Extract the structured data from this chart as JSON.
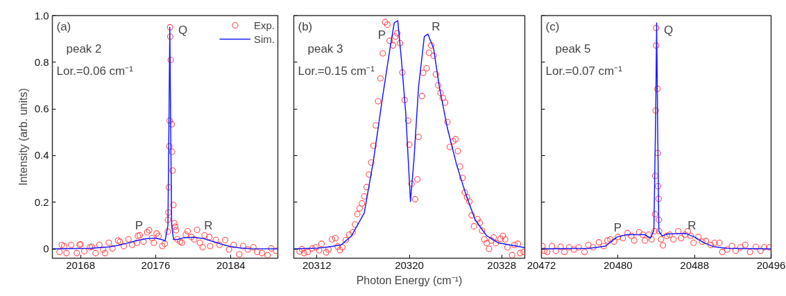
{
  "chart_data": [
    {
      "type": "scatter",
      "ylabel": "Intensity (arb. units)",
      "xlim": [
        20165,
        20189
      ],
      "xticks": [
        20168,
        20176,
        20184
      ],
      "ylim": [
        -0.04,
        1.0
      ],
      "yticks": [
        0,
        0.2,
        0.4,
        0.6,
        0.8,
        {
          "value": 1.0,
          "label": "1.0"
        }
      ],
      "grid": false,
      "legend": "top right",
      "annotations": [
        "(a)",
        "peak 2",
        "Lor.=0.06 cm⁻¹",
        "P",
        "Q",
        "R"
      ],
      "series": [
        {
          "name": "Exp.",
          "marker": "circle",
          "color": "#ff4a4a",
          "x": [
            20165.76,
            20166.0,
            20166.26,
            20166.5,
            20167.0,
            20167.6,
            20167.9,
            20168.0,
            20168.4,
            20169.0,
            20169.2,
            20169.6,
            20170.0,
            20170.4,
            20170.6,
            20171.0,
            20171.4,
            20172.0,
            20172.2,
            20172.6,
            20173.1,
            20173.5,
            20174.0,
            20174.1,
            20174.3,
            20174.7,
            20175.1,
            20175.3,
            20175.6,
            20175.8,
            20176.1,
            20176.3,
            20176.7,
            20176.96,
            20177.28,
            20177.3,
            20177.35,
            20177.4,
            20177.45,
            20177.48,
            20177.53,
            20177.55,
            20177.6,
            20177.7,
            20177.75,
            20177.8,
            20177.88,
            20177.98,
            20178.07,
            20178.17,
            20178.3,
            20178.6,
            20178.8,
            20179.2,
            20179.4,
            20179.8,
            20180.1,
            20180.4,
            20180.7,
            20181.0,
            20181.2,
            20181.7,
            20181.8,
            20182.4,
            20182.8,
            20183.4,
            20183.8,
            20184.3,
            20184.9,
            20185.3,
            20185.8,
            20186.4,
            20186.8,
            20187.3,
            20187.9,
            20188.3,
            20188.8
          ],
          "values": [
            -0.013,
            0.017,
            0.012,
            -0.018,
            0.017,
            -0.018,
            0.017,
            0.02,
            -0.01,
            0.007,
            0.009,
            -0.018,
            0.017,
            -0.003,
            -0.018,
            0.026,
            0.002,
            0.036,
            0.031,
            0.012,
            0.041,
            0.017,
            0.026,
            0.056,
            0.058,
            0.031,
            0.071,
            0.08,
            0.046,
            0.026,
            0.066,
            0.056,
            0.012,
            0.022,
            0.074,
            0.125,
            0.156,
            0.264,
            0.44,
            0.55,
            0.95,
            0.91,
            0.81,
            0.534,
            0.416,
            0.336,
            0.188,
            0.11,
            0.095,
            0.08,
            0.041,
            0.031,
            0.026,
            0.061,
            0.076,
            0.051,
            0.041,
            0.082,
            0.026,
            0.007,
            0.058,
            0.051,
            0.012,
            0.038,
            0.017,
            0.038,
            -0.003,
            0.017,
            -0.023,
            0.012,
            -0.003,
            0.007,
            -0.013,
            -0.018,
            -0.027,
            0.002,
            -0.008
          ]
        },
        {
          "name": "Sim.",
          "type": "line",
          "color": "#1a1aff",
          "x": [
            20165,
            20169,
            20171,
            20172,
            20173,
            20174,
            20175,
            20176,
            20176.6,
            20177.0,
            20177.3,
            20177.4,
            20177.5,
            20177.6,
            20177.7,
            20177.9,
            20178.3,
            20179,
            20180,
            20181,
            20182,
            20183,
            20184,
            20185,
            20186,
            20189
          ],
          "values": [
            0,
            0.002,
            0.008,
            0.015,
            0.025,
            0.036,
            0.044,
            0.046,
            0.04,
            0.035,
            0.1,
            0.5,
            0.95,
            0.5,
            0.1,
            0.04,
            0.04,
            0.048,
            0.05,
            0.045,
            0.033,
            0.02,
            0.01,
            0.004,
            0.001,
            0
          ]
        }
      ]
    },
    {
      "type": "scatter",
      "xlabel": "Photon Energy (cm⁻¹)",
      "xlim": [
        20310,
        20330
      ],
      "xticks": [
        20312,
        20320,
        20328
      ],
      "ylim": [
        -0.04,
        1.0
      ],
      "yticks": [
        0,
        0.2,
        0.4,
        0.6,
        0.8,
        1.0
      ],
      "grid": false,
      "tick_labels": "x",
      "annotations": [
        "(b)",
        "peak 3",
        "Lor.=0.15 cm⁻¹",
        "P",
        "R"
      ],
      "series": [
        {
          "marker": "circle",
          "color": "#ff4a4a",
          "x": [
            20310.5,
            20310.7,
            20310.9,
            20311.2,
            20311.6,
            20311.9,
            20312.2,
            20312.4,
            20312.8,
            20313.0,
            20313.3,
            20313.6,
            20313.8,
            20314.0,
            20314.2,
            20314.5,
            20314.8,
            20315.1,
            20315.3,
            20315.5,
            20315.7,
            20315.9,
            20316.1,
            20316.3,
            20316.5,
            20316.7,
            20316.9,
            20317.1,
            20317.3,
            20317.5,
            20317.7,
            20317.9,
            20318.1,
            20318.3,
            20318.6,
            20318.8,
            20318.96,
            20319.2,
            20319.4,
            20319.6,
            20319.9,
            20320.0,
            20320.2,
            20320.5,
            20320.7,
            20320.8,
            20321.1,
            20321.2,
            20321.5,
            20321.7,
            20321.9,
            20322.1,
            20322.3,
            20322.5,
            20322.7,
            20322.9,
            20323.1,
            20323.3,
            20323.5,
            20323.8,
            20324.0,
            20324.2,
            20324.4,
            20324.6,
            20324.8,
            20325.0,
            20325.2,
            20325.4,
            20325.6,
            20325.9,
            20326.1,
            20326.3,
            20326.5,
            20326.7,
            20326.9,
            20327.1,
            20327.3,
            20327.5,
            20327.9,
            20328.1,
            20328.3,
            20328.5,
            20328.9,
            20329.1,
            20329.4,
            20329.6,
            20329.9
          ],
          "values": [
            -0.011,
            -0.001,
            -0.018,
            -0.013,
            0.002,
            0.007,
            -0.006,
            0.022,
            -0.015,
            -0.003,
            0.041,
            0.046,
            0.01,
            -0.005,
            0.007,
            0.038,
            0.061,
            0.071,
            0.105,
            0.149,
            0.174,
            0.195,
            0.225,
            0.265,
            0.319,
            0.37,
            0.442,
            0.529,
            0.633,
            0.731,
            0.838,
            0.972,
            0.961,
            0.892,
            0.872,
            0.91,
            0.924,
            0.882,
            0.756,
            0.638,
            0.55,
            0.447,
            0.279,
            0.213,
            0.298,
            0.48,
            0.655,
            0.755,
            0.774,
            0.841,
            0.872,
            0.828,
            0.748,
            0.701,
            0.669,
            0.647,
            0.627,
            0.544,
            0.437,
            0.461,
            0.47,
            0.419,
            0.353,
            0.304,
            0.242,
            0.221,
            0.203,
            0.144,
            0.097,
            0.127,
            0.112,
            0.078,
            0.041,
            0.025,
            0.0,
            0.036,
            0.049,
            0.025,
            0.043,
            0.056,
            0.041,
            0.007,
            -0.027,
            0.017,
            0.022,
            -0.018,
            -0.013
          ]
        },
        {
          "type": "line",
          "color": "#1a1aff",
          "x": [
            20310,
            20312,
            20313,
            20314.1,
            20315,
            20316.1,
            20316.9,
            20317.7,
            20318.3,
            20318.7,
            20319.0,
            20319.3,
            20319.7,
            20320.1,
            20320.4,
            20320.8,
            20321.3,
            20321.6,
            20322.1,
            20322.6,
            20323.3,
            20324.1,
            20324.9,
            20325.7,
            20326.7,
            20327.7,
            20330
          ],
          "values": [
            0,
            0.003,
            0.008,
            0.017,
            0.056,
            0.154,
            0.38,
            0.655,
            0.85,
            0.969,
            0.978,
            0.82,
            0.576,
            0.203,
            0.38,
            0.694,
            0.91,
            0.921,
            0.86,
            0.694,
            0.517,
            0.36,
            0.233,
            0.125,
            0.056,
            0.026,
            0.005
          ]
        }
      ]
    },
    {
      "type": "scatter",
      "xlim": [
        20472,
        20496
      ],
      "xticks": [
        20472,
        20480,
        20488,
        20496
      ],
      "ylim": [
        -0.04,
        1.0
      ],
      "yticks": [
        0,
        0.2,
        0.4,
        0.6,
        0.8,
        1.0
      ],
      "grid": false,
      "tick_labels": "x",
      "annotations": [
        "(c)",
        "peak 5",
        "Lor.=0.07 cm⁻¹",
        "P",
        "Q",
        "R"
      ],
      "series": [
        {
          "marker": "circle",
          "color": "#ff4a4a",
          "x": [
            20472.1,
            20472.3,
            20472.6,
            20473.1,
            20473.5,
            20474.0,
            20474.4,
            20474.9,
            20475.4,
            20475.9,
            20476.5,
            20476.9,
            20477.4,
            20478.0,
            20478.5,
            20478.9,
            20479.2,
            20479.6,
            20480.0,
            20480.5,
            20481.0,
            20481.4,
            20481.7,
            20482.2,
            20482.6,
            20482.8,
            20483.2,
            20483.5,
            20483.82,
            20483.87,
            20483.89,
            20483.94,
            20483.99,
            20483.99,
            20484.13,
            20484.16,
            20484.18,
            20484.25,
            20484.27,
            20484.3,
            20484.5,
            20484.7,
            20485.1,
            20485.4,
            20485.8,
            20486.3,
            20486.6,
            20487.0,
            20487.3,
            20487.6,
            20487.9,
            20488.4,
            20488.8,
            20489.2,
            20489.7,
            20490.1,
            20490.6,
            20490.9,
            20491.4,
            20491.9,
            20492.3,
            20492.8,
            20493.3,
            20493.8,
            20494.4,
            20494.9,
            20495.3,
            20495.8
          ],
          "values": [
            0.012,
            -0.008,
            -0.013,
            0.012,
            -0.008,
            0.009,
            -0.013,
            0.007,
            -0.003,
            0.007,
            -0.013,
            0.017,
            0.007,
            0.028,
            0.012,
            0.036,
            0.041,
            0.031,
            0.051,
            0.046,
            0.068,
            0.056,
            0.036,
            0.071,
            0.061,
            0.036,
            0.061,
            0.041,
            0.076,
            0.149,
            0.313,
            0.593,
            0.947,
            0.872,
            0.686,
            0.411,
            0.269,
            0.215,
            0.125,
            0.076,
            0.041,
            0.015,
            0.056,
            0.061,
            0.041,
            0.076,
            0.046,
            0.061,
            0.076,
            0.056,
            0.026,
            0.051,
            0.031,
            0.034,
            0.017,
            0.026,
            0.026,
            -0.013,
            -0.003,
            0.012,
            -0.008,
            0.007,
            0.017,
            -0.013,
            0.009,
            -0.008,
            0.007,
            0.007
          ]
        },
        {
          "type": "line",
          "color": "#1a1aff",
          "x": [
            20472,
            20477,
            20478.7,
            20479.9,
            20480.9,
            20482.8,
            20483.4,
            20483.75,
            20483.94,
            20484.04,
            20484.13,
            20484.27,
            20484.6,
            20485.2,
            20487.1,
            20488.0,
            20489.0,
            20489.96,
            20491.4,
            20496
          ],
          "values": [
            0,
            0.002,
            0.012,
            0.051,
            0.061,
            0.061,
            0.046,
            0.08,
            0.576,
            0.969,
            0.576,
            0.076,
            0.056,
            0.064,
            0.066,
            0.051,
            0.026,
            0.01,
            0.002,
            0
          ]
        }
      ]
    }
  ]
}
